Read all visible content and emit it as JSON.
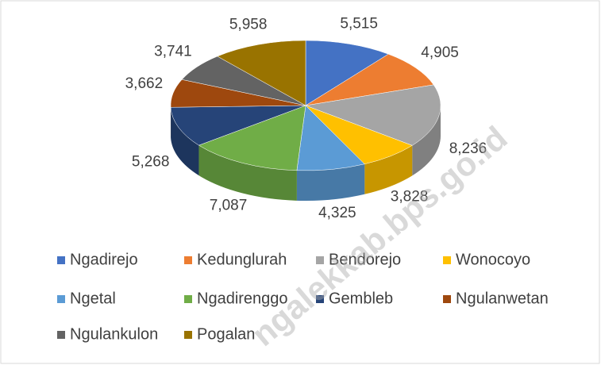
{
  "chart_data": {
    "type": "pie3d",
    "categories": [
      "Ngadirejo",
      "Kedunglurah",
      "Bendorejo",
      "Wonocoyo",
      "Ngetal",
      "Ngadirenggo",
      "Gembleb",
      "Ngulanwetan",
      "Ngulankulon",
      "Pogalan"
    ],
    "values": [
      5515,
      4905,
      8236,
      3828,
      4325,
      7087,
      5268,
      3662,
      3741,
      5958
    ],
    "value_labels": [
      "5,515",
      "4,905",
      "8,236",
      "3,828",
      "4,325",
      "7,087",
      "5,268",
      "3,662",
      "3,741",
      "5,958"
    ],
    "colors": [
      "#4472c4",
      "#ed7d31",
      "#a5a5a5",
      "#ffc000",
      "#5b9bd5",
      "#70ad47",
      "#264478",
      "#9e480e",
      "#636363",
      "#997300"
    ],
    "legend": "bottom",
    "watermark": "ngalekkab.bps.go.id"
  }
}
